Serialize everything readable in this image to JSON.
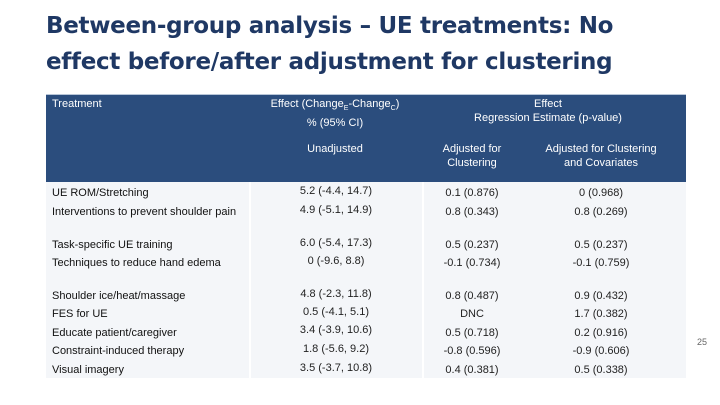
{
  "title": "Between-group analysis – UE treatments: No effect before/after adjustment for clustering",
  "table": {
    "header": {
      "treatment": "Treatment",
      "effect_pct_line1_main": "Effect (Change",
      "effect_pct_sub_e": "E",
      "effect_pct_dash": "-Change",
      "effect_pct_sub_c": "C",
      "effect_pct_close": ")",
      "effect_pct_line2": "% (95% CI)",
      "effect_reg_line1": "Effect",
      "effect_reg_line2": "Regression Estimate (p-value)",
      "unadjusted": "Unadjusted",
      "adj_cluster_line1": "Adjusted for",
      "adj_cluster_line2": "Clustering",
      "adj_cov_line1": "Adjusted for Clustering",
      "adj_cov_line2": "and Covariates"
    },
    "rows": [
      {
        "treatment": "UE ROM/Stretching",
        "unadjusted": "5.2 (-4.4, 14.7)",
        "adj_clustering": "0.1 (0.876)",
        "adj_covariates": "0 (0.968)"
      },
      {
        "treatment": "Interventions to prevent shoulder pain",
        "unadjusted": "4.9 (-5.1, 14.9)",
        "adj_clustering": "0.8 (0.343)",
        "adj_covariates": "0.8 (0.269)"
      },
      {
        "treatment": "Task-specific UE training",
        "unadjusted": "6.0 (-5.4, 17.3)",
        "adj_clustering": "0.5 (0.237)",
        "adj_covariates": "0.5 (0.237)"
      },
      {
        "treatment": "Techniques to reduce hand edema",
        "unadjusted": "0 (-9.6, 8.8)",
        "adj_clustering": "-0.1 (0.734)",
        "adj_covariates": "-0.1 (0.759)"
      },
      {
        "treatment": "Shoulder ice/heat/massage",
        "unadjusted": "4.8 (-2.3, 11.8)",
        "adj_clustering": "0.8 (0.487)",
        "adj_covariates": "0.9 (0.432)"
      },
      {
        "treatment": "FES for UE",
        "unadjusted": "0.5 (-4.1, 5.1)",
        "adj_clustering": "DNC",
        "adj_covariates": "1.7 (0.382)"
      },
      {
        "treatment": "Educate patient/caregiver",
        "unadjusted": "3.4 (-3.9, 10.6)",
        "adj_clustering": "0.5 (0.718)",
        "adj_covariates": "0.2 (0.916)"
      },
      {
        "treatment": "Constraint-induced therapy",
        "unadjusted": "1.8 (-5.6, 9.2)",
        "adj_clustering": "-0.8 (0.596)",
        "adj_covariates": "-0.9 (0.606)"
      },
      {
        "treatment": "Visual imagery",
        "unadjusted": "3.5 (-3.7, 10.8)",
        "adj_clustering": "0.4 (0.381)",
        "adj_covariates": "0.5 (0.338)"
      }
    ]
  },
  "page_number": "25"
}
